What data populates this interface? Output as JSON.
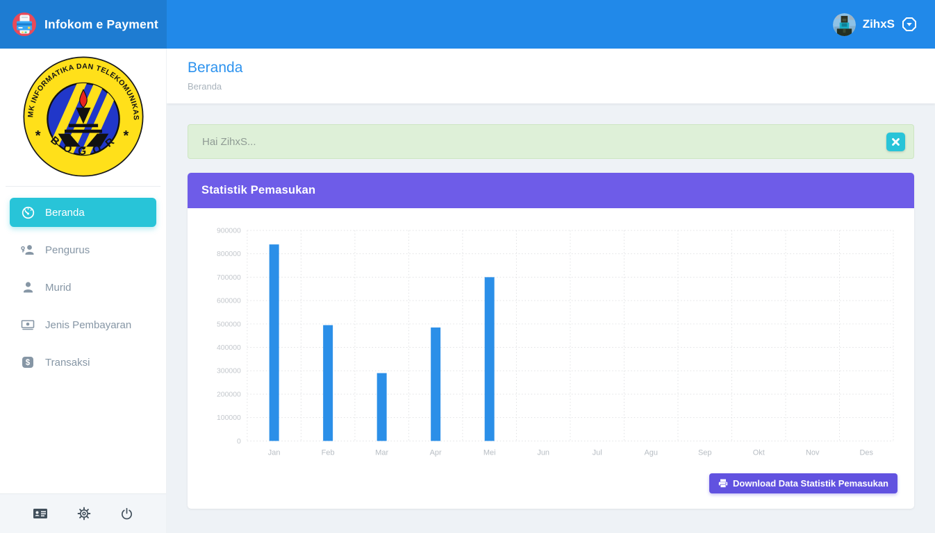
{
  "header": {
    "brand": "Infokom e Payment",
    "brand_icon": "payment-app-logo-icon",
    "user_name": "ZihxS",
    "user_menu_icon": "dropdown-caret-icon"
  },
  "sidebar": {
    "logo": {
      "arc_text": "SMK INFORMATIKA DAN TELEKOMUNIKASI",
      "bottom_text": "B O G O R",
      "star_left": "*",
      "star_right": "*"
    },
    "items": [
      {
        "label": "Beranda",
        "icon": "dashboard-icon",
        "active": true
      },
      {
        "label": "Pengurus",
        "icon": "user-key-icon",
        "active": false
      },
      {
        "label": "Murid",
        "icon": "user-icon",
        "active": false
      },
      {
        "label": "Jenis Pembayaran",
        "icon": "money-bill-icon",
        "active": false
      },
      {
        "label": "Transaksi",
        "icon": "dollar-square-icon",
        "active": false
      }
    ],
    "footer_icons": [
      "id-card-icon",
      "gear-icon",
      "power-icon"
    ]
  },
  "page": {
    "title": "Beranda",
    "breadcrumb": "Beranda"
  },
  "alert": {
    "message": "Hai ZihxS...",
    "close_icon": "close-icon"
  },
  "panel": {
    "title": "Statistik Pemasukan",
    "download_button": "Download Data Statistik Pemasukan",
    "download_icon": "printer-icon"
  },
  "chart_data": {
    "type": "bar",
    "title": "Statistik Pemasukan",
    "categories": [
      "Jan",
      "Feb",
      "Mar",
      "Apr",
      "Mei",
      "Jun",
      "Jul",
      "Agu",
      "Sep",
      "Okt",
      "Nov",
      "Des"
    ],
    "values": [
      840000,
      495000,
      290000,
      485000,
      700000,
      0,
      0,
      0,
      0,
      0,
      0,
      0
    ],
    "xlabel": "",
    "ylabel": "",
    "ylim": [
      0,
      900000
    ],
    "ytick_step": 100000,
    "grid": "dotted",
    "legend_position": "none",
    "bar_color": "#2b8fe8",
    "tick_label_color": "#c3c7cc",
    "grid_color": "#e0e1e3"
  },
  "colors": {
    "header_blue": "#2189e9",
    "brand_blue": "#1e7cd2",
    "accent_cyan": "#28c4d8",
    "panel_purple": "#6e5ce8",
    "button_purple": "#6152e0",
    "alert_green": "#def0d8",
    "bar_blue": "#2b8fe8"
  }
}
